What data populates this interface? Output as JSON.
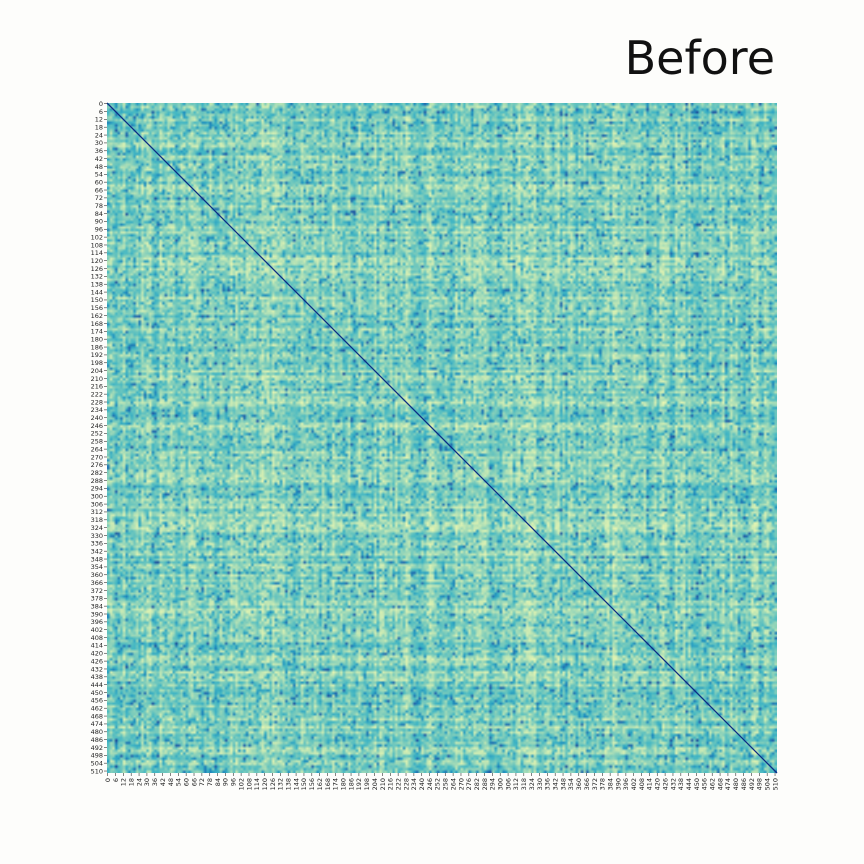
{
  "chart_data": {
    "type": "heatmap",
    "title": "Before",
    "n": 512,
    "xlabel": "",
    "ylabel": "",
    "x_ticks": [
      0,
      6,
      12,
      18,
      24,
      30,
      36,
      42,
      48,
      54,
      60,
      66,
      72,
      78,
      84,
      90,
      96,
      102,
      108,
      114,
      120,
      126,
      132,
      138,
      144,
      150,
      156,
      162,
      168,
      174,
      180,
      186,
      192,
      198,
      204,
      210,
      216,
      222,
      228,
      234,
      240,
      246,
      252,
      258,
      264,
      270,
      276,
      282,
      288,
      294,
      300,
      306,
      312,
      318,
      324,
      330,
      336,
      342,
      348,
      354,
      360,
      366,
      372,
      378,
      384,
      390,
      396,
      402,
      408,
      414,
      420,
      426,
      432,
      438,
      444,
      450,
      456,
      462,
      468,
      474,
      480,
      486,
      492,
      498,
      504,
      510
    ],
    "y_ticks": [
      0,
      6,
      12,
      18,
      24,
      30,
      36,
      42,
      48,
      54,
      60,
      66,
      72,
      78,
      84,
      90,
      96,
      102,
      108,
      114,
      120,
      126,
      132,
      138,
      144,
      150,
      156,
      162,
      168,
      174,
      180,
      186,
      192,
      198,
      204,
      210,
      216,
      222,
      228,
      234,
      240,
      246,
      252,
      258,
      264,
      270,
      276,
      282,
      288,
      294,
      300,
      306,
      312,
      318,
      324,
      330,
      336,
      342,
      348,
      354,
      360,
      366,
      372,
      378,
      384,
      390,
      396,
      402,
      408,
      414,
      420,
      426,
      432,
      438,
      444,
      450,
      456,
      462,
      468,
      474,
      480,
      486,
      492,
      498,
      504,
      510
    ],
    "value_range": [
      0,
      1
    ],
    "diagonal_value": 1,
    "colormap": [
      "#ffffd9",
      "#edf8b1",
      "#c7e9b4",
      "#7fcdbb",
      "#41b6c4",
      "#1d91c0",
      "#225ea8",
      "#0c2c84"
    ],
    "colorbar": false,
    "grid": false
  }
}
